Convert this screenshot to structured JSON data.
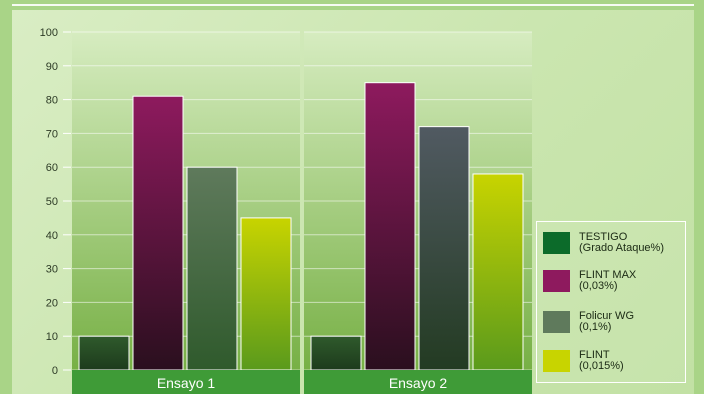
{
  "chart_data": {
    "type": "bar",
    "categories": [
      "Ensayo 1",
      "Ensayo 2"
    ],
    "series": [
      {
        "name": "TESTIGO (Grado Ataque%)",
        "values": [
          10,
          10
        ],
        "color": "#0c6b2a"
      },
      {
        "name": "FLINT MAX (0,03%)",
        "values": [
          81,
          85
        ],
        "color": "#8e1a5e"
      },
      {
        "name": "Folicur WG (0,1%)",
        "values": [
          60,
          72
        ],
        "color": "#5f7a5c"
      },
      {
        "name": "FLINT (0,015%)",
        "values": [
          45,
          58
        ],
        "color": "#c8d400"
      }
    ],
    "yticks": [
      "0",
      "10",
      "20",
      "30",
      "40",
      "50",
      "60",
      "70",
      "80",
      "90",
      "100"
    ],
    "ylim": [
      0,
      100
    ],
    "grid": true,
    "legend_position": "bottom-right"
  },
  "legend": [
    {
      "line1": "TESTIGO",
      "line2": "(Grado Ataque%)",
      "color": "#0c6b2a"
    },
    {
      "line1": "FLINT MAX",
      "line2": "(0,03%)",
      "color": "#8e1a5e"
    },
    {
      "line1": "Folicur WG",
      "line2": "(0,1%)",
      "color": "#5f7a5c"
    },
    {
      "line1": "FLINT",
      "line2": "(0,015%)",
      "color": "#c8d400"
    }
  ]
}
